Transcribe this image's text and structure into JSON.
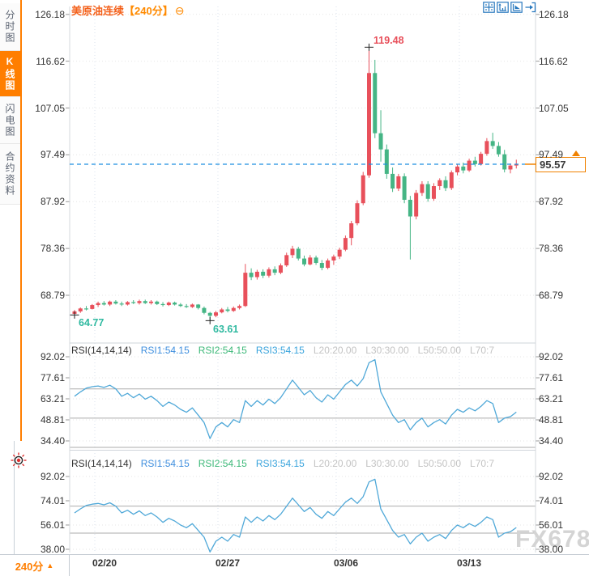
{
  "header": {
    "title": "美原油连续",
    "period": "【240分】",
    "collapse_icon": "⊖"
  },
  "sidebar": {
    "tabs": [
      {
        "label": "分时图",
        "active": false
      },
      {
        "label": "K线图",
        "active": true
      },
      {
        "label": "闪电图",
        "active": false
      },
      {
        "label": "合约资料",
        "active": false
      }
    ]
  },
  "toolbar": {
    "icons": [
      "crosshair",
      "price-axis-scale",
      "time-axis-scale",
      "exit-chart"
    ]
  },
  "main_chart": {
    "y_axis_labels": [
      "126.18",
      "116.62",
      "107.05",
      "97.49",
      "87.92",
      "78.36",
      "68.79"
    ],
    "current_price": "95.57",
    "annotations": {
      "high": "119.48",
      "low_start": "64.77",
      "low_dip": "63.61"
    }
  },
  "rsi_panel_1": {
    "indicator": "RSI(14,14,14)",
    "rsi1": "RSI1:54.15",
    "rsi2": "RSI2:54.15",
    "rsi3": "RSI3:54.15",
    "l20": "L20:20.00",
    "l30": "L30:30.00",
    "l50": "L50:50.00",
    "l70": "L70:7",
    "y_axis_labels": [
      "92.02",
      "77.61",
      "63.21",
      "48.81",
      "34.40"
    ]
  },
  "rsi_panel_2": {
    "indicator": "RSI(14,14,14)",
    "rsi1": "RSI1:54.15",
    "rsi2": "RSI2:54.15",
    "rsi3": "RSI3:54.15",
    "l20": "L20:20.00",
    "l30": "L30:30.00",
    "l50": "L50:50.00",
    "l70": "L70:7",
    "y_axis_labels": [
      "92.02",
      "74.01",
      "56.01",
      "38.00"
    ]
  },
  "x_axis": {
    "dates": [
      "02/20",
      "02/27",
      "03/06",
      "03/13"
    ]
  },
  "period_selector": {
    "label": "240分",
    "arrow": "▲"
  },
  "watermark": "FX678",
  "colors": {
    "up": "#e8505b",
    "down": "#45b585",
    "rsi_line": "#4fa8d8",
    "price_line": "#1e8fe0",
    "accent": "#ff7e00"
  },
  "chart_data": [
    {
      "type": "candlestick",
      "title": "美原油连续 240分 K线",
      "y_ticks": [
        126.18,
        116.62,
        107.05,
        97.49,
        87.92,
        78.36,
        68.79
      ],
      "x_tick_dates": [
        "02/20",
        "02/27",
        "03/06",
        "03/13"
      ],
      "marked_high": 119.48,
      "marked_lows": [
        64.77,
        63.61
      ],
      "last_price": 95.57,
      "up_color": "#e8505b",
      "down_color": "#45b585",
      "candles_ohlc": [
        [
          65.0,
          65.8,
          64.77,
          65.5
        ],
        [
          65.5,
          66.3,
          65.2,
          66.1
        ],
        [
          66.1,
          66.6,
          65.7,
          66.0
        ],
        [
          66.0,
          67.0,
          65.9,
          66.8
        ],
        [
          66.8,
          67.5,
          66.4,
          67.2
        ],
        [
          67.2,
          67.6,
          66.7,
          66.9
        ],
        [
          66.9,
          67.7,
          66.6,
          67.5
        ],
        [
          67.5,
          67.8,
          66.9,
          67.1
        ],
        [
          67.1,
          67.5,
          66.6,
          66.9
        ],
        [
          66.9,
          67.6,
          66.7,
          67.4
        ],
        [
          67.4,
          67.8,
          67.0,
          67.2
        ],
        [
          67.2,
          67.9,
          66.9,
          67.6
        ],
        [
          67.6,
          67.9,
          67.0,
          67.2
        ],
        [
          67.2,
          67.8,
          66.9,
          67.5
        ],
        [
          67.5,
          67.7,
          66.8,
          67.0
        ],
        [
          67.0,
          67.4,
          66.5,
          66.8
        ],
        [
          66.8,
          67.5,
          66.6,
          67.3
        ],
        [
          67.3,
          67.5,
          66.7,
          66.9
        ],
        [
          66.9,
          67.2,
          66.4,
          66.6
        ],
        [
          66.6,
          67.0,
          66.2,
          66.4
        ],
        [
          66.4,
          67.1,
          66.2,
          66.9
        ],
        [
          66.9,
          67.0,
          65.9,
          66.2
        ],
        [
          66.2,
          66.5,
          64.9,
          65.2
        ],
        [
          65.2,
          65.4,
          63.61,
          64.6
        ],
        [
          64.6,
          65.6,
          64.3,
          65.3
        ],
        [
          65.3,
          66.2,
          65.1,
          65.9
        ],
        [
          65.9,
          66.4,
          65.3,
          65.6
        ],
        [
          65.6,
          66.5,
          65.4,
          66.2
        ],
        [
          66.2,
          66.9,
          65.9,
          66.6
        ],
        [
          66.6,
          75.2,
          66.4,
          73.4
        ],
        [
          73.4,
          74.3,
          71.9,
          72.5
        ],
        [
          72.5,
          74.0,
          72.0,
          73.6
        ],
        [
          73.6,
          74.1,
          72.3,
          72.8
        ],
        [
          72.8,
          74.5,
          72.4,
          74.1
        ],
        [
          74.1,
          74.7,
          72.9,
          73.4
        ],
        [
          73.4,
          75.3,
          73.1,
          74.9
        ],
        [
          74.9,
          77.5,
          74.6,
          77.0
        ],
        [
          77.0,
          78.9,
          76.4,
          78.3
        ],
        [
          78.3,
          78.7,
          75.9,
          76.3
        ],
        [
          76.3,
          76.9,
          74.7,
          75.1
        ],
        [
          75.1,
          77.0,
          74.9,
          76.5
        ],
        [
          76.5,
          76.9,
          75.0,
          75.4
        ],
        [
          75.4,
          76.0,
          73.9,
          74.4
        ],
        [
          74.4,
          76.3,
          74.1,
          75.9
        ],
        [
          75.9,
          77.1,
          75.0,
          76.7
        ],
        [
          76.7,
          78.5,
          76.2,
          78.1
        ],
        [
          78.1,
          81.0,
          77.8,
          80.5
        ],
        [
          80.5,
          84.0,
          79.0,
          83.5
        ],
        [
          83.5,
          88.2,
          83.1,
          87.6
        ],
        [
          87.6,
          94.0,
          87.2,
          93.3
        ],
        [
          93.3,
          119.48,
          92.8,
          114.2
        ],
        [
          114.2,
          116.9,
          100.9,
          101.9
        ],
        [
          101.9,
          106.6,
          96.1,
          98.6
        ],
        [
          98.6,
          99.6,
          92.6,
          93.6
        ],
        [
          93.6,
          94.9,
          89.9,
          90.6
        ],
        [
          90.6,
          93.6,
          90.1,
          93.1
        ],
        [
          93.1,
          93.7,
          87.6,
          88.3
        ],
        [
          88.3,
          89.1,
          76.1,
          84.9
        ],
        [
          84.9,
          90.3,
          84.3,
          89.7
        ],
        [
          89.7,
          92.1,
          89.1,
          91.5
        ],
        [
          91.5,
          92.1,
          87.9,
          88.5
        ],
        [
          88.5,
          91.7,
          88.1,
          91.1
        ],
        [
          91.1,
          92.7,
          90.3,
          92.3
        ],
        [
          92.3,
          93.1,
          90.1,
          90.7
        ],
        [
          90.7,
          94.3,
          90.3,
          93.9
        ],
        [
          93.9,
          95.5,
          93.3,
          95.1
        ],
        [
          95.1,
          95.9,
          93.7,
          94.3
        ],
        [
          94.3,
          96.7,
          94.0,
          96.3
        ],
        [
          96.3,
          97.1,
          95.1,
          95.6
        ],
        [
          95.6,
          98.1,
          95.3,
          97.7
        ],
        [
          97.7,
          100.9,
          97.3,
          100.3
        ],
        [
          100.3,
          102.0,
          98.7,
          99.3
        ],
        [
          99.3,
          100.1,
          97.1,
          97.6
        ],
        [
          97.6,
          98.5,
          93.9,
          94.5
        ],
        [
          94.5,
          95.7,
          93.7,
          95.3
        ],
        [
          95.3,
          96.5,
          94.7,
          95.57
        ]
      ]
    },
    {
      "type": "line",
      "name": "RSI(14,14,14)",
      "legend": [
        "RSI1:54.15",
        "RSI2:54.15",
        "RSI3:54.15"
      ],
      "ref_lines": [
        20,
        30,
        50,
        70
      ],
      "y_ticks": [
        92.02,
        77.61,
        63.21,
        48.81,
        34.4
      ],
      "series": [
        {
          "name": "RSI1",
          "values": [
            65,
            68,
            70.5,
            71.5,
            72,
            71,
            72.5,
            70,
            65,
            67,
            64,
            66.5,
            63,
            65,
            62,
            58,
            61,
            59,
            56,
            54,
            57,
            52,
            47,
            36,
            44,
            47,
            44,
            49,
            47,
            62,
            58,
            62,
            59,
            63,
            60,
            64,
            70,
            76,
            71,
            66,
            69,
            64,
            61,
            66,
            63,
            68,
            73,
            76,
            72,
            77,
            88,
            90,
            68,
            60,
            52,
            47,
            49,
            42,
            47,
            50,
            44,
            47,
            49,
            46,
            52,
            56,
            54,
            57,
            55,
            58,
            62,
            60,
            47,
            50,
            51,
            54.15
          ]
        }
      ]
    },
    {
      "type": "line",
      "name": "RSI(14,14,14)",
      "legend": [
        "RSI1:54.15",
        "RSI2:54.15",
        "RSI3:54.15"
      ],
      "ref_lines": [
        20,
        30,
        50,
        70
      ],
      "y_ticks": [
        92.02,
        74.01,
        56.01,
        38.0
      ],
      "series": [
        {
          "name": "RSI1",
          "values": [
            65,
            68,
            70.5,
            71.5,
            72,
            71,
            72.5,
            70,
            65,
            67,
            64,
            66.5,
            63,
            65,
            62,
            58,
            61,
            59,
            56,
            54,
            57,
            52,
            47,
            36,
            44,
            47,
            44,
            49,
            47,
            62,
            58,
            62,
            59,
            63,
            60,
            64,
            70,
            76,
            71,
            66,
            69,
            64,
            61,
            66,
            63,
            68,
            73,
            76,
            72,
            77,
            88,
            90,
            68,
            60,
            52,
            47,
            49,
            42,
            47,
            50,
            44,
            47,
            49,
            46,
            52,
            56,
            54,
            57,
            55,
            58,
            62,
            60,
            47,
            50,
            51,
            54.15
          ]
        }
      ]
    }
  ]
}
